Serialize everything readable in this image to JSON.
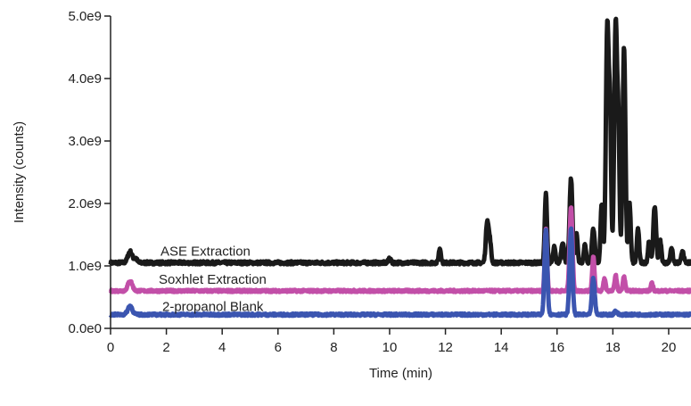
{
  "chart_data": {
    "type": "line",
    "title": "",
    "xlabel": "Time (min)",
    "ylabel": "Intensity  (counts)",
    "xlim": [
      0,
      20.8
    ],
    "ylim": [
      0,
      5000000000
    ],
    "x_ticks": [
      0,
      2,
      4,
      6,
      8,
      10,
      12,
      14,
      16,
      18,
      20
    ],
    "x_tick_labels": [
      "0",
      "2",
      "4",
      "6",
      "8",
      "10",
      "12",
      "14",
      "16",
      "18",
      "20"
    ],
    "y_ticks": [
      0,
      1000000000,
      2000000000,
      3000000000,
      4000000000,
      5000000000
    ],
    "y_tick_labels": [
      "0.0e0",
      "1.0e9",
      "2.0e9",
      "3.0e9",
      "4.0e9",
      "5.0e9"
    ],
    "grid": false,
    "legend": "none",
    "series": [
      {
        "name": "ASE Extraction",
        "color": "#1a1a1a",
        "baseline": 1050000000,
        "noise": 25000000,
        "peaks": [
          [
            0.7,
            1230000000,
            0.08
          ],
          [
            0.9,
            1120000000,
            0.05
          ],
          [
            10.0,
            1130000000,
            0.04
          ],
          [
            11.8,
            1280000000,
            0.04
          ],
          [
            13.5,
            1730000000,
            0.05
          ],
          [
            13.6,
            1350000000,
            0.04
          ],
          [
            15.6,
            2150000000,
            0.04
          ],
          [
            15.9,
            1300000000,
            0.04
          ],
          [
            16.2,
            1380000000,
            0.05
          ],
          [
            16.5,
            2400000000,
            0.05
          ],
          [
            16.7,
            1500000000,
            0.04
          ],
          [
            17.0,
            1350000000,
            0.04
          ],
          [
            17.3,
            1600000000,
            0.05
          ],
          [
            17.6,
            2000000000,
            0.04
          ],
          [
            17.8,
            4850000000,
            0.05
          ],
          [
            17.9,
            3200000000,
            0.04
          ],
          [
            18.1,
            4900000000,
            0.05
          ],
          [
            18.2,
            3000000000,
            0.04
          ],
          [
            18.4,
            4500000000,
            0.05
          ],
          [
            18.6,
            2000000000,
            0.04
          ],
          [
            18.9,
            1600000000,
            0.04
          ],
          [
            19.3,
            1400000000,
            0.04
          ],
          [
            19.5,
            1950000000,
            0.05
          ],
          [
            19.7,
            1400000000,
            0.04
          ],
          [
            20.1,
            1300000000,
            0.04
          ],
          [
            20.5,
            1250000000,
            0.04
          ]
        ]
      },
      {
        "name": "Soxhlet Extraction",
        "color": "#c24fa8",
        "baseline": 600000000,
        "noise": 18000000,
        "peaks": [
          [
            0.7,
            760000000,
            0.08
          ],
          [
            15.6,
            1600000000,
            0.04
          ],
          [
            16.5,
            1950000000,
            0.05
          ],
          [
            17.3,
            1150000000,
            0.04
          ],
          [
            17.7,
            800000000,
            0.04
          ],
          [
            18.1,
            850000000,
            0.04
          ],
          [
            18.4,
            830000000,
            0.04
          ],
          [
            19.4,
            720000000,
            0.04
          ]
        ]
      },
      {
        "name": "2-propanol Blank",
        "color": "#3b55b0",
        "baseline": 220000000,
        "noise": 18000000,
        "peaks": [
          [
            0.7,
            360000000,
            0.08
          ],
          [
            15.6,
            1580000000,
            0.05
          ],
          [
            16.5,
            1600000000,
            0.05
          ],
          [
            17.3,
            800000000,
            0.05
          ],
          [
            18.1,
            280000000,
            0.05
          ]
        ]
      }
    ]
  }
}
